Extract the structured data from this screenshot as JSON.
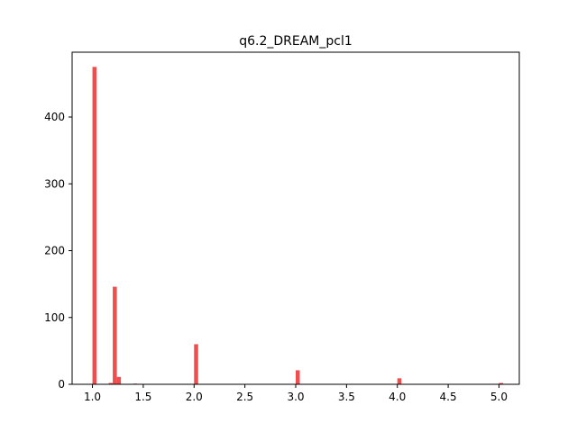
{
  "chart_data": {
    "type": "bar",
    "title": "q6.2_DREAM_pcl1",
    "xlabel": "",
    "ylabel": "",
    "xlim": [
      0.8,
      5.2
    ],
    "ylim": [
      0,
      497
    ],
    "grid": false,
    "bar_color": "#f04d4d",
    "bin_width": 0.04,
    "x_ticks": [
      1.0,
      1.5,
      2.0,
      2.5,
      3.0,
      3.5,
      4.0,
      4.5,
      5.0
    ],
    "x_tick_labels": [
      "1.0",
      "1.5",
      "2.0",
      "2.5",
      "3.0",
      "3.5",
      "4.0",
      "4.5",
      "5.0"
    ],
    "y_ticks": [
      0,
      100,
      200,
      300,
      400
    ],
    "y_tick_labels": [
      "0",
      "100",
      "200",
      "300",
      "400"
    ],
    "bins": [
      {
        "x": 1.0,
        "value": 475
      },
      {
        "x": 1.16,
        "value": 2
      },
      {
        "x": 1.2,
        "value": 146
      },
      {
        "x": 1.24,
        "value": 11
      },
      {
        "x": 1.4,
        "value": 1
      },
      {
        "x": 2.0,
        "value": 60
      },
      {
        "x": 3.0,
        "value": 21
      },
      {
        "x": 4.0,
        "value": 9
      },
      {
        "x": 5.0,
        "value": 2
      }
    ]
  }
}
